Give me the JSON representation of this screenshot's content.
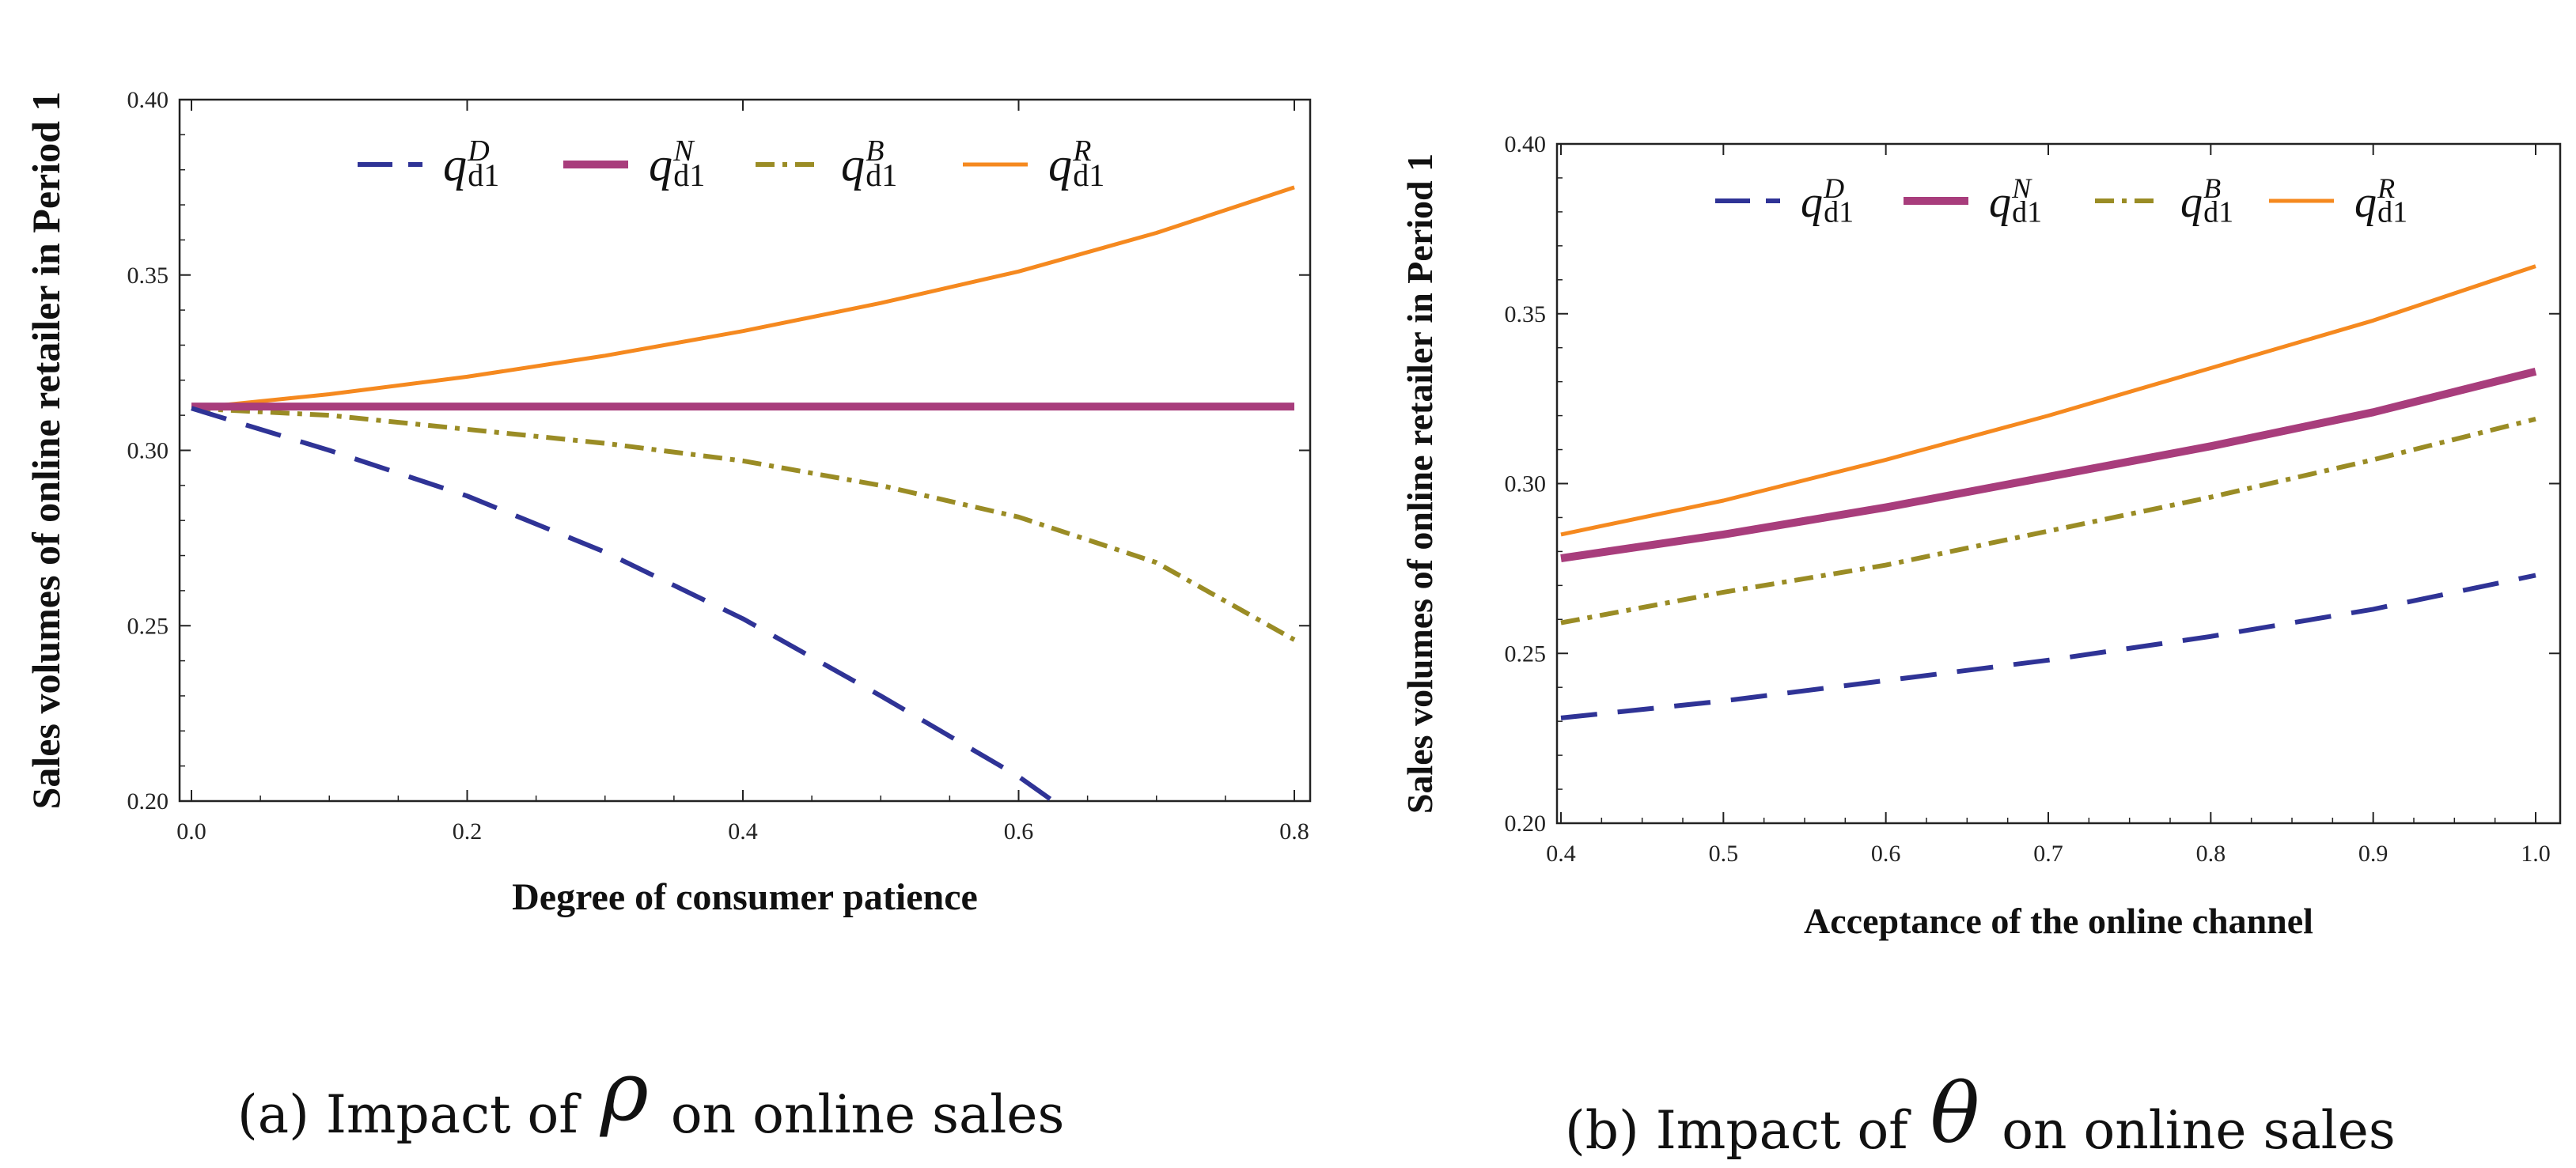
{
  "chart_data": [
    {
      "type": "line",
      "panel_id": "a",
      "xlabel": "Degree of consumer patience",
      "ylabel": "Sales volumes of online retailer in Period 1",
      "xlim": [
        0.0,
        0.8
      ],
      "ylim": [
        0.2,
        0.4
      ],
      "xticks": [
        "0.0",
        "0.2",
        "0.4",
        "0.6",
        "0.8"
      ],
      "xtick_values": [
        0.0,
        0.2,
        0.4,
        0.6,
        0.8
      ],
      "yticks": [
        "0.20",
        "0.25",
        "0.30",
        "0.35",
        "0.40"
      ],
      "ytick_values": [
        0.2,
        0.25,
        0.3,
        0.35,
        0.4
      ],
      "caption_prefix": "(a) Impact of",
      "caption_symbol": "ρ",
      "caption_suffix": "on online sales",
      "series": [
        {
          "key": "D",
          "name": "q",
          "sup": "D",
          "sub": "d1",
          "style": "dashed",
          "color": "#2f3396",
          "x": [
            0.0,
            0.1,
            0.2,
            0.3,
            0.4,
            0.5,
            0.6,
            0.625
          ],
          "y": [
            0.312,
            0.3,
            0.287,
            0.271,
            0.252,
            0.23,
            0.207,
            0.2
          ]
        },
        {
          "key": "N",
          "name": "q",
          "sup": "N",
          "sub": "d1",
          "style": "solid-thick",
          "color": "#a83d7c",
          "x": [
            0.0,
            0.8
          ],
          "y": [
            0.3125,
            0.3125
          ]
        },
        {
          "key": "B",
          "name": "q",
          "sup": "B",
          "sub": "d1",
          "style": "dashdot",
          "color": "#9a8c25",
          "x": [
            0.0,
            0.1,
            0.2,
            0.3,
            0.4,
            0.5,
            0.6,
            0.7,
            0.8
          ],
          "y": [
            0.312,
            0.31,
            0.306,
            0.302,
            0.297,
            0.29,
            0.281,
            0.268,
            0.246
          ]
        },
        {
          "key": "R",
          "name": "q",
          "sup": "R",
          "sub": "d1",
          "style": "solid",
          "color": "#f5891f",
          "x": [
            0.0,
            0.1,
            0.2,
            0.3,
            0.4,
            0.5,
            0.6,
            0.7,
            0.8
          ],
          "y": [
            0.312,
            0.316,
            0.321,
            0.327,
            0.334,
            0.342,
            0.351,
            0.362,
            0.375
          ]
        }
      ]
    },
    {
      "type": "line",
      "panel_id": "b",
      "xlabel": "Acceptance of the online channel",
      "ylabel": "Sales volumes of online retailer in Period 1",
      "xlim": [
        0.4,
        1.0
      ],
      "ylim": [
        0.2,
        0.4
      ],
      "xticks": [
        "0.4",
        "0.5",
        "0.6",
        "0.7",
        "0.8",
        "0.9",
        "1.0"
      ],
      "xtick_values": [
        0.4,
        0.5,
        0.6,
        0.7,
        0.8,
        0.9,
        1.0
      ],
      "yticks": [
        "0.20",
        "0.25",
        "0.30",
        "0.35",
        "0.40"
      ],
      "ytick_values": [
        0.2,
        0.25,
        0.3,
        0.35,
        0.4
      ],
      "caption_prefix": "(b) Impact of",
      "caption_symbol": "θ",
      "caption_suffix": "on online sales",
      "series": [
        {
          "key": "D",
          "name": "q",
          "sup": "D",
          "sub": "d1",
          "style": "dashed",
          "color": "#2f3396",
          "x": [
            0.4,
            0.5,
            0.6,
            0.7,
            0.8,
            0.9,
            1.0
          ],
          "y": [
            0.231,
            0.236,
            0.242,
            0.248,
            0.255,
            0.263,
            0.273
          ]
        },
        {
          "key": "N",
          "name": "q",
          "sup": "N",
          "sub": "d1",
          "style": "solid-thick",
          "color": "#a83d7c",
          "x": [
            0.4,
            0.5,
            0.6,
            0.7,
            0.8,
            0.9,
            1.0
          ],
          "y": [
            0.278,
            0.285,
            0.293,
            0.302,
            0.311,
            0.321,
            0.333
          ]
        },
        {
          "key": "B",
          "name": "q",
          "sup": "B",
          "sub": "d1",
          "style": "dashdot",
          "color": "#9a8c25",
          "x": [
            0.4,
            0.5,
            0.6,
            0.7,
            0.8,
            0.9,
            1.0
          ],
          "y": [
            0.259,
            0.268,
            0.276,
            0.286,
            0.296,
            0.307,
            0.319
          ]
        },
        {
          "key": "R",
          "name": "q",
          "sup": "R",
          "sub": "d1",
          "style": "solid",
          "color": "#f5891f",
          "x": [
            0.4,
            0.5,
            0.6,
            0.7,
            0.8,
            0.9,
            1.0
          ],
          "y": [
            0.285,
            0.295,
            0.307,
            0.32,
            0.334,
            0.348,
            0.364
          ]
        }
      ]
    }
  ]
}
